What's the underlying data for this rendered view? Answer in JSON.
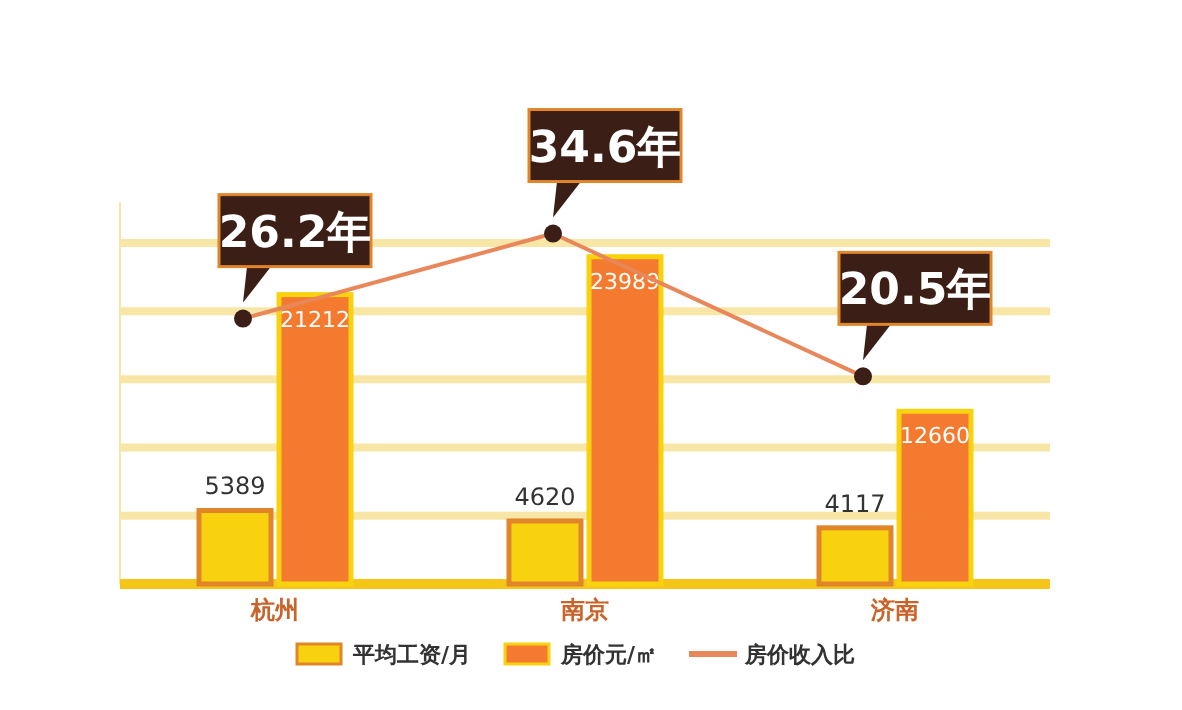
{
  "chart_data": {
    "type": "bar",
    "categories": [
      "杭州",
      "南京",
      "济南"
    ],
    "series": [
      {
        "name": "平均工资/月",
        "color": "#f9d20f",
        "values": [
          5389,
          4620,
          4117
        ],
        "value_labels": [
          "5389",
          "4620",
          "4117"
        ]
      },
      {
        "name": "房价元/㎡",
        "color": "#f47a30",
        "values": [
          21212,
          23989,
          12660
        ],
        "value_labels": [
          "21212",
          "23989",
          "12660"
        ]
      },
      {
        "name": "房价收入比",
        "type": "line",
        "axis": "y2",
        "color": "#e8875a",
        "marker": "circle",
        "values": [
          26.2,
          34.6,
          20.5
        ],
        "value_labels": [
          "26.2年",
          "34.6年",
          "20.5年"
        ]
      }
    ],
    "ylim": [
      0,
      28000
    ],
    "yticks": [
      {
        "value": 0,
        "label": null
      },
      {
        "value": 5000,
        "label": null
      },
      {
        "value": 10000,
        "label": null
      },
      {
        "value": 15000,
        "label": null
      },
      {
        "value": 20000,
        "label": null
      },
      {
        "value": 25000,
        "label": null
      }
    ],
    "grid": "y",
    "tick_labels": "x",
    "legend": "bottom"
  }
}
